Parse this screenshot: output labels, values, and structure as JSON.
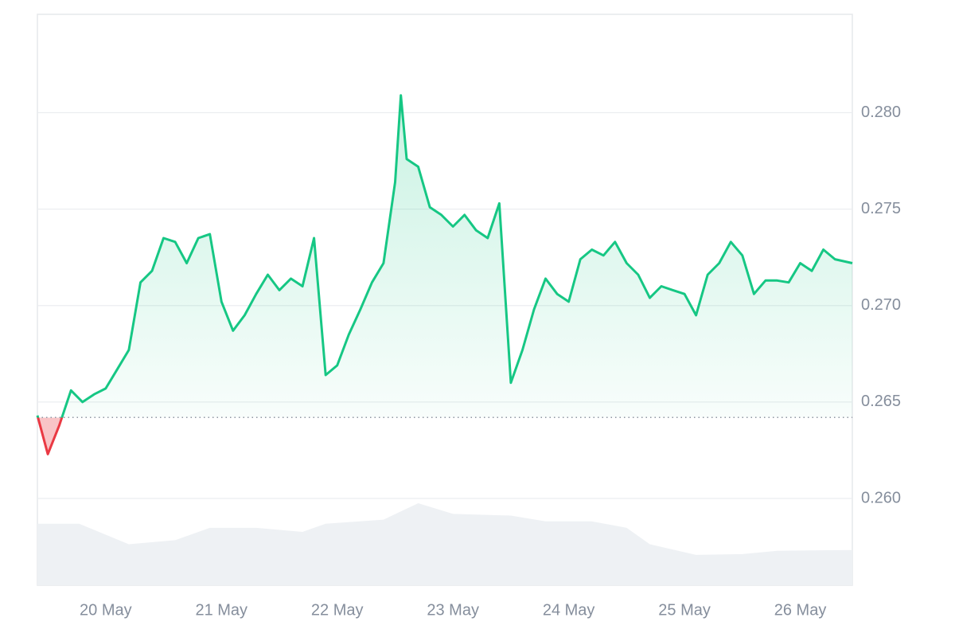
{
  "chart_data": {
    "type": "line",
    "series": [
      {
        "color": "#16c784",
        "below_color": "#ea3943",
        "x": [
          19.41,
          19.5,
          19.6,
          19.7,
          19.8,
          19.9,
          20.0,
          20.1,
          20.2,
          20.3,
          20.4,
          20.5,
          20.6,
          20.7,
          20.8,
          20.9,
          21.0,
          21.1,
          21.2,
          21.3,
          21.4,
          21.5,
          21.6,
          21.7,
          21.8,
          21.9,
          22.0,
          22.1,
          22.2,
          22.3,
          22.4,
          22.5,
          22.55,
          22.6,
          22.7,
          22.8,
          22.9,
          23.0,
          23.1,
          23.2,
          23.3,
          23.4,
          23.5,
          23.6,
          23.7,
          23.8,
          23.9,
          24.0,
          24.1,
          24.2,
          24.3,
          24.4,
          24.5,
          24.6,
          24.7,
          24.8,
          24.9,
          25.0,
          25.1,
          25.2,
          25.3,
          25.4,
          25.5,
          25.6,
          25.7,
          25.8,
          25.9,
          26.0,
          26.1,
          26.2,
          26.3,
          26.45
        ],
        "values": [
          0.2643,
          0.2623,
          0.2638,
          0.2656,
          0.265,
          0.2654,
          0.2657,
          0.2667,
          0.2677,
          0.2712,
          0.2718,
          0.2735,
          0.2733,
          0.2722,
          0.2735,
          0.2737,
          0.2702,
          0.2687,
          0.2695,
          0.2706,
          0.2716,
          0.2708,
          0.2714,
          0.271,
          0.2735,
          0.2664,
          0.2669,
          0.2685,
          0.2698,
          0.2712,
          0.2722,
          0.2764,
          0.2809,
          0.2776,
          0.2772,
          0.2751,
          0.2747,
          0.2741,
          0.2747,
          0.2739,
          0.2735,
          0.2753,
          0.266,
          0.2677,
          0.2698,
          0.2714,
          0.2706,
          0.2702,
          0.2724,
          0.2729,
          0.2726,
          0.2733,
          0.2722,
          0.2716,
          0.2704,
          0.271,
          0.2708,
          0.2706,
          0.2695,
          0.2716,
          0.2722,
          0.2733,
          0.2726,
          0.2706,
          0.2713,
          0.2713,
          0.2712,
          0.2722,
          0.2718,
          0.2729,
          0.2724,
          0.2722
        ]
      }
    ],
    "baseline": 0.2642,
    "volume": {
      "color": "#eef1f4",
      "x": [
        19.41,
        19.77,
        20.2,
        20.6,
        20.9,
        21.3,
        21.7,
        21.9,
        22.4,
        22.7,
        23.0,
        23.5,
        23.8,
        24.2,
        24.5,
        24.7,
        25.1,
        25.5,
        25.8,
        26.45
      ],
      "values": [
        75,
        75,
        50,
        55,
        70,
        70,
        65,
        75,
        80,
        100,
        87,
        85,
        78,
        78,
        70,
        50,
        37,
        38,
        42,
        43
      ],
      "ylim": [
        0,
        100
      ]
    },
    "xlim": [
      19.41,
      26.45
    ],
    "xticks": [
      {
        "value": 20,
        "label": "20 May"
      },
      {
        "value": 21,
        "label": "21 May"
      },
      {
        "value": 22,
        "label": "22 May"
      },
      {
        "value": 23,
        "label": "23 May"
      },
      {
        "value": 24,
        "label": "24 May"
      },
      {
        "value": 25,
        "label": "25 May"
      },
      {
        "value": 26,
        "label": "26 May"
      }
    ],
    "ylim": [
      0.2555,
      0.2851
    ],
    "yticks": [
      {
        "value": 0.26,
        "label": "0.260"
      },
      {
        "value": 0.265,
        "label": "0.265"
      },
      {
        "value": 0.27,
        "label": "0.270"
      },
      {
        "value": 0.275,
        "label": "0.275"
      },
      {
        "value": 0.28,
        "label": "0.280"
      }
    ],
    "grid": true
  }
}
